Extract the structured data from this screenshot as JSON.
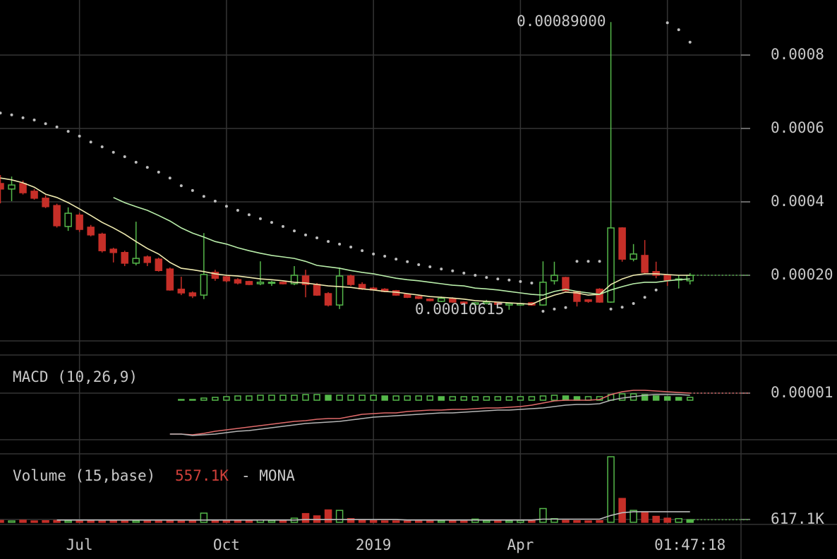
{
  "chart_data": [
    {
      "type": "candlestick",
      "up_color": "#55b84a",
      "down_color": "#c62f28",
      "ylim": [
        2.12e-05,
        0.00095
      ],
      "yticks": [
        0.0008,
        0.0006,
        0.0004,
        {
          "value": 0.0002,
          "label": "0.00020"
        }
      ],
      "grid": true,
      "open": [
        0.00045,
        0.000435,
        0.00045,
        0.000429,
        0.00041,
        0.00039,
        0.000333,
        0.000364,
        0.000331,
        0.000312,
        0.000271,
        0.000262,
        0.000233,
        0.00025,
        0.000244,
        0.000217,
        0.000162,
        0.000152,
        0.000146,
        0.000208,
        0.000196,
        0.000188,
        0.000183,
        0.000177,
        0.000179,
        0.000181,
        0.000177,
        0.000198,
        0.000175,
        0.00015,
        0.000119,
        0.000198,
        0.000175,
        0.000165,
        0.000162,
        0.000158,
        0.000148,
        0.000142,
        0.000135,
        0.000129,
        0.000137,
        0.000127,
        0.000121,
        0.000123,
        0.000125,
        0.000119,
        0.000119,
        0.000125,
        0.000119,
        0.000185,
        0.000194,
        0.000156,
        0.000133,
        0.000162,
        0.000127,
        0.000329,
        0.000244,
        0.000254,
        0.00021,
        0.0002,
        0.000187,
        0.000185
      ],
      "high": [
        0.000473,
        0.000469,
        0.000458,
        0.000435,
        0.000418,
        0.000395,
        0.000385,
        0.00037,
        0.000337,
        0.000316,
        0.000275,
        0.000267,
        0.000346,
        0.000254,
        0.000248,
        0.000221,
        0.000196,
        0.000156,
        0.000315,
        0.000215,
        0.0002,
        0.000192,
        0.000185,
        0.000238,
        0.000185,
        0.000183,
        0.000225,
        0.000215,
        0.000179,
        0.000154,
        0.000221,
        0.000202,
        0.000181,
        0.000168,
        0.000165,
        0.00016,
        0.00015,
        0.000144,
        0.000137,
        0.000142,
        0.00014,
        0.000129,
        0.000127,
        0.000133,
        0.000127,
        0.000125,
        0.000125,
        0.000127,
        0.000238,
        0.000237,
        0.000196,
        0.000158,
        0.000135,
        0.000165,
        0.00089,
        0.000331,
        0.000285,
        0.000296,
        0.000237,
        0.000203,
        0.0002,
        0.000206
      ],
      "low": [
        0.000396,
        0.000402,
        0.00042,
        0.000406,
        0.000383,
        0.00033,
        0.000321,
        0.000318,
        0.000306,
        0.000262,
        0.000235,
        0.000225,
        0.000227,
        0.000225,
        0.00021,
        0.000158,
        0.000146,
        0.000138,
        0.000135,
        0.000185,
        0.000181,
        0.000175,
        0.000173,
        0.000173,
        0.000171,
        0.000175,
        0.000173,
        0.00014,
        0.000144,
        0.000115,
        0.000108,
        0.000171,
        0.00016,
        0.000158,
        0.000154,
        0.000144,
        0.000138,
        0.000135,
        0.000129,
        0.000127,
        0.000125,
        0.000121,
        0.000119,
        0.000121,
        0.000119,
        0.00010615,
        0.000117,
        0.000117,
        0.000117,
        0.000175,
        0.000156,
        0.000115,
        0.000125,
        0.000125,
        0.000125,
        0.000237,
        0.000238,
        0.000204,
        0.000192,
        0.000171,
        0.000164,
        0.000175
      ],
      "close": [
        0.000435,
        0.000446,
        0.000425,
        0.00041,
        0.000387,
        0.000335,
        0.000369,
        0.000325,
        0.00031,
        0.000267,
        0.000262,
        0.000233,
        0.000246,
        0.000235,
        0.000213,
        0.00016,
        0.000152,
        0.000144,
        0.000202,
        0.000192,
        0.000185,
        0.000179,
        0.000175,
        0.000181,
        0.000181,
        0.000177,
        0.0002,
        0.000175,
        0.000146,
        0.000119,
        0.000198,
        0.000175,
        0.000163,
        0.00016,
        0.000156,
        0.000146,
        0.00014,
        0.000137,
        0.000131,
        0.000137,
        0.000127,
        0.000123,
        0.000125,
        0.000127,
        0.000121,
        0.000123,
        0.000123,
        0.000119,
        0.000181,
        0.0002,
        0.000158,
        0.000129,
        0.000129,
        0.000127,
        0.000329,
        0.000244,
        0.000258,
        0.000208,
        0.0002,
        0.000187,
        0.00019,
        0.0002
      ],
      "lines": [
        {
          "color": "#efebb0",
          "values": [
            0.000465,
            0.00046,
            0.000452,
            0.00044,
            0.000421,
            0.000412,
            0.000398,
            0.000381,
            0.000363,
            0.000344,
            0.000329,
            0.000312,
            0.000292,
            0.000273,
            0.000258,
            0.000235,
            0.000219,
            0.000215,
            0.00021,
            0.000204,
            0.0002,
            0.000198,
            0.000194,
            0.00019,
            0.000188,
            0.000185,
            0.000181,
            0.000179,
            0.000175,
            0.000171,
            0.000169,
            0.000167,
            0.000163,
            0.00016,
            0.000156,
            0.000154,
            0.00015,
            0.000146,
            0.000142,
            0.00014,
            0.000138,
            0.000135,
            0.000131,
            0.000129,
            0.000127,
            0.000125,
            0.000123,
            0.000121,
            0.000135,
            0.000146,
            0.000154,
            0.000152,
            0.000146,
            0.000148,
            0.000175,
            0.00019,
            0.0002,
            0.000204,
            0.000204,
            0.000202,
            0.0002,
            0.0002
          ]
        },
        {
          "color": "#b9eeaa",
          "values": [
            null,
            null,
            null,
            null,
            null,
            null,
            null,
            null,
            null,
            null,
            0.000412,
            0.000398,
            0.000387,
            0.000377,
            0.000363,
            0.000348,
            0.000329,
            0.000315,
            0.000304,
            0.000292,
            0.000285,
            0.000275,
            0.000267,
            0.00026,
            0.000254,
            0.00025,
            0.000246,
            0.000238,
            0.000227,
            0.000223,
            0.000219,
            0.000213,
            0.000208,
            0.000204,
            0.000198,
            0.000192,
            0.000188,
            0.000185,
            0.000181,
            0.000177,
            0.000173,
            0.000171,
            0.000165,
            0.000163,
            0.00016,
            0.000156,
            0.000152,
            0.000148,
            0.000146,
            0.000156,
            0.000162,
            0.000156,
            0.000152,
            0.000148,
            0.00016,
            0.000169,
            0.000177,
            0.000181,
            0.000181,
            0.000185,
            0.000188,
            0.00019
          ]
        }
      ],
      "sar": {
        "color": "#bdbdbd",
        "values": [
          0.000642,
          0.000637,
          0.000629,
          0.000623,
          0.000613,
          0.000604,
          0.000592,
          0.000579,
          0.000563,
          0.00055,
          0.000535,
          0.000523,
          0.000508,
          0.000494,
          0.000481,
          0.000465,
          0.000444,
          0.000431,
          0.000415,
          0.000402,
          0.000388,
          0.000377,
          0.000365,
          0.000354,
          0.000344,
          0.000333,
          0.000321,
          0.00031,
          0.000302,
          0.000292,
          0.000285,
          0.000277,
          0.000267,
          0.000258,
          0.000252,
          0.000244,
          0.000237,
          0.000229,
          0.000223,
          0.000217,
          0.000212,
          0.000206,
          0.0002,
          0.000194,
          0.00019,
          0.000187,
          0.000183,
          0.000179,
          0.000102,
          0.000108,
          0.000112,
          0.000238,
          0.000238,
          0.000238,
          0.000108,
          0.000113,
          0.000123,
          0.00014,
          0.00016,
          0.000888,
          0.000869,
          0.000835
        ]
      },
      "annotations": [
        {
          "value": 0.00089,
          "label": "0.00089000"
        },
        {
          "value": 0.00010615,
          "label": "0.00010615"
        }
      ]
    },
    {
      "type": "macd",
      "title": "MACD (10,26,9)",
      "ylim": [
        -5.6e-05,
        6.4e-05
      ],
      "yticks": [
        1e-05
      ],
      "grid": true,
      "lines": [
        {
          "color": "#e06a6a",
          "values": [
            null,
            null,
            null,
            null,
            null,
            null,
            null,
            null,
            null,
            null,
            null,
            null,
            null,
            null,
            null,
            -4.8e-05,
            -4.8e-05,
            -4.9e-05,
            -4.7e-05,
            -4.4e-05,
            -4.2e-05,
            -4e-05,
            -3.8e-05,
            -3.6e-05,
            -3.4e-05,
            -3.2e-05,
            -3e-05,
            -2.9e-05,
            -2.7e-05,
            -2.6e-05,
            -2.6e-05,
            -2.3e-05,
            -2e-05,
            -1.9e-05,
            -1.8e-05,
            -1.8e-05,
            -1.6e-05,
            -1.5e-05,
            -1.4e-05,
            -1.4e-05,
            -1.3e-05,
            -1.3e-05,
            -1.2e-05,
            -1.1e-05,
            -1.1e-05,
            -1e-05,
            -9e-06,
            -7e-06,
            -4e-06,
            -1e-06,
            0,
            0,
            0,
            1e-06,
            8e-06,
            1.2e-05,
            1.4e-05,
            1.4e-05,
            1.3e-05,
            1.2e-05,
            1.1e-05,
            1e-05
          ]
        },
        {
          "color": "#b5b5b5",
          "values": [
            null,
            null,
            null,
            null,
            null,
            null,
            null,
            null,
            null,
            null,
            null,
            null,
            null,
            null,
            null,
            -4.8e-05,
            -4.8e-05,
            -5e-05,
            -4.9e-05,
            -4.8e-05,
            -4.6e-05,
            -4.4e-05,
            -4.3e-05,
            -4.1e-05,
            -3.9e-05,
            -3.7e-05,
            -3.5e-05,
            -3.3e-05,
            -3.2e-05,
            -3.1e-05,
            -3e-05,
            -2.8e-05,
            -2.6e-05,
            -2.4e-05,
            -2.3e-05,
            -2.2e-05,
            -2.1e-05,
            -2e-05,
            -1.9e-05,
            -1.8e-05,
            -1.8e-05,
            -1.7e-05,
            -1.6e-05,
            -1.5e-05,
            -1.4e-05,
            -1.4e-05,
            -1.3e-05,
            -1.2e-05,
            -1.1e-05,
            -9e-06,
            -7e-06,
            -6e-06,
            -6e-06,
            -5e-06,
            0,
            3e-06,
            5e-06,
            7e-06,
            8e-06,
            8e-06,
            8e-06,
            7e-06
          ]
        }
      ],
      "histogram": {
        "color": "#55b84a",
        "values": [
          null,
          null,
          null,
          null,
          null,
          null,
          null,
          null,
          null,
          null,
          null,
          null,
          null,
          null,
          null,
          null,
          1e-06,
          1e-06,
          3e-06,
          4e-06,
          5e-06,
          6e-06,
          6e-06,
          7e-06,
          7e-06,
          7e-06,
          7e-06,
          8e-06,
          8e-06,
          7e-06,
          7e-06,
          7e-06,
          7e-06,
          7e-06,
          6e-06,
          6e-06,
          6e-06,
          6e-06,
          6e-06,
          5e-06,
          5e-06,
          5e-06,
          5e-06,
          5e-06,
          5e-06,
          5e-06,
          5e-06,
          5e-06,
          6e-06,
          7e-06,
          6e-06,
          5e-06,
          5e-06,
          5e-06,
          8e-06,
          9e-06,
          9e-06,
          8e-06,
          6e-06,
          5e-06,
          4e-06,
          4e-06
        ]
      }
    },
    {
      "type": "volume",
      "title": "Volume (15,base)",
      "symbol": "- MONA",
      "ylim": [
        0,
        15400000
      ],
      "yticks": [
        {
          "value": 617100,
          "label": "617.1K"
        }
      ],
      "grid": true,
      "categories": [
        null,
        null,
        null,
        null,
        null,
        null,
        null,
        "Jul",
        null,
        null,
        null,
        null,
        null,
        null,
        null,
        null,
        null,
        null,
        null,
        null,
        "Oct",
        null,
        null,
        null,
        null,
        null,
        null,
        null,
        null,
        null,
        null,
        null,
        null,
        "2019",
        null,
        null,
        null,
        null,
        null,
        null,
        null,
        null,
        null,
        null,
        null,
        null,
        "Apr",
        null,
        null,
        null,
        null,
        null,
        null,
        null,
        null,
        null,
        null,
        null,
        null,
        null,
        null,
        "01:47:18"
      ],
      "values": [
        400000,
        300000,
        450000,
        300000,
        350000,
        400000,
        300000,
        250000,
        300000,
        250000,
        300000,
        250000,
        300000,
        250000,
        250000,
        300000,
        250000,
        300000,
        2000000,
        400000,
        350000,
        300000,
        300000,
        500000,
        350000,
        300000,
        900000,
        1900000,
        1400000,
        2700000,
        2600000,
        800000,
        500000,
        350000,
        300000,
        300000,
        250000,
        250000,
        250000,
        300000,
        300000,
        250000,
        700000,
        300000,
        250000,
        300000,
        400000,
        350000,
        3000000,
        800000,
        400000,
        350000,
        300000,
        350000,
        14300000,
        5200000,
        2600000,
        2300000,
        1300000,
        900000,
        800000,
        557100
      ],
      "value_labels": [
        null,
        null,
        null,
        null,
        null,
        null,
        null,
        null,
        null,
        null,
        null,
        null,
        null,
        null,
        null,
        null,
        null,
        null,
        null,
        null,
        null,
        null,
        null,
        null,
        null,
        null,
        null,
        null,
        null,
        null,
        null,
        null,
        null,
        null,
        null,
        null,
        null,
        null,
        null,
        null,
        null,
        null,
        null,
        null,
        null,
        null,
        null,
        null,
        null,
        null,
        null,
        null,
        null,
        null,
        null,
        null,
        null,
        null,
        null,
        null,
        null,
        "557.1K"
      ],
      "ma": {
        "color": "#bdbdbd",
        "values": [
          null,
          null,
          null,
          null,
          null,
          500000,
          500000,
          500000,
          500000,
          500000,
          500000,
          500000,
          500000,
          500000,
          500000,
          500000,
          500000,
          500000,
          500000,
          500000,
          500000,
          500000,
          500000,
          500000,
          500000,
          500000,
          500000,
          600000,
          600000,
          600000,
          600000,
          600000,
          600000,
          600000,
          600000,
          600000,
          500000,
          500000,
          500000,
          500000,
          500000,
          500000,
          500000,
          500000,
          500000,
          500000,
          500000,
          500000,
          700000,
          700000,
          700000,
          700000,
          700000,
          700000,
          1500000,
          2100000,
          2300000,
          2300000,
          2300000,
          2300000,
          2300000,
          2300000
        ]
      }
    }
  ]
}
